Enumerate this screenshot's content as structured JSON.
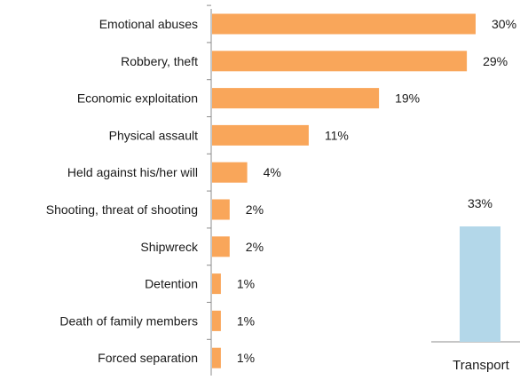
{
  "chart_data": [
    {
      "type": "bar",
      "orientation": "horizontal",
      "categories": [
        "Emotional abuses",
        "Robbery, theft",
        "Economic exploitation",
        "Physical assault",
        "Held against his/her will",
        "Shooting, threat of shooting",
        "Shipwreck",
        "Detention",
        "Death of family members",
        "Forced separation"
      ],
      "values": [
        30,
        29,
        19,
        11,
        4,
        2,
        2,
        1,
        1,
        1
      ],
      "value_labels": [
        "30%",
        "29%",
        "19%",
        "11%",
        "4%",
        "2%",
        "2%",
        "1%",
        "1%",
        "1%"
      ],
      "unit": "%",
      "color": "#F9A65A",
      "xlim": [
        0,
        31
      ]
    },
    {
      "type": "bar",
      "orientation": "vertical",
      "categories": [
        "Transport"
      ],
      "values": [
        33
      ],
      "value_labels": [
        "33%"
      ],
      "unit": "%",
      "color": "#B3D7E9",
      "ylim": [
        0,
        33
      ]
    }
  ]
}
